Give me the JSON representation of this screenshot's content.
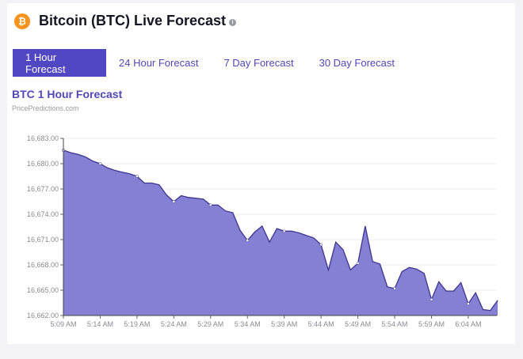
{
  "header": {
    "title": "Bitcoin (BTC) Live Forecast",
    "coin_icon": "bitcoin-icon",
    "info_icon": "info-icon"
  },
  "tabs": [
    {
      "label": "1 Hour Forecast",
      "active": true
    },
    {
      "label": "24 Hour Forecast"
    },
    {
      "label": "7 Day Forecast"
    },
    {
      "label": "30 Day Forecast"
    }
  ],
  "colors": {
    "accent": "#5147c2",
    "area_fill": "#8680d4",
    "line": "#3d358f",
    "coin": "#f7931a"
  },
  "chart_data": {
    "type": "area",
    "title": "BTC 1 Hour Forecast",
    "subtitle": "PricePredictions.com",
    "xlabel": "",
    "ylabel": "",
    "ylim": [
      16662,
      16683
    ],
    "yticks": [
      "16,683.00",
      "16,680.00",
      "16,677.00",
      "16,674.00",
      "16,671.00",
      "16,668.00",
      "16,665.00",
      "16,662.00"
    ],
    "ytick_values": [
      16683,
      16680,
      16677,
      16674,
      16671,
      16668,
      16665,
      16662
    ],
    "xticks": [
      "5:09 AM",
      "5:14 AM",
      "5:19 AM",
      "5:24 AM",
      "5:29 AM",
      "5:34 AM",
      "5:39 AM",
      "5:44 AM",
      "5:49 AM",
      "5:54 AM",
      "5:59 AM",
      "6:04 AM"
    ],
    "grid": true,
    "start": "5:09 AM",
    "interval_minutes": 1,
    "values": [
      16681.6,
      16681.3,
      16681.1,
      16680.8,
      16680.3,
      16680.0,
      16679.5,
      16679.2,
      16679.0,
      16678.8,
      16678.5,
      16677.7,
      16677.7,
      16677.5,
      16676.3,
      16675.5,
      16676.2,
      16676.0,
      16675.9,
      16675.8,
      16675.1,
      16675.1,
      16674.4,
      16674.2,
      16672.1,
      16670.9,
      16671.9,
      16672.6,
      16670.7,
      16672.3,
      16672.0,
      16672.0,
      16671.8,
      16671.5,
      16671.2,
      16670.4,
      16667.4,
      16670.7,
      16669.8,
      16667.4,
      16668.2,
      16672.6,
      16668.4,
      16668.1,
      16665.4,
      16665.2,
      16667.2,
      16667.7,
      16667.5,
      16667.0,
      16663.9,
      16666.0,
      16664.9,
      16664.9,
      16665.9,
      16663.4,
      16664.7,
      16662.7,
      16662.6,
      16663.8
    ]
  }
}
